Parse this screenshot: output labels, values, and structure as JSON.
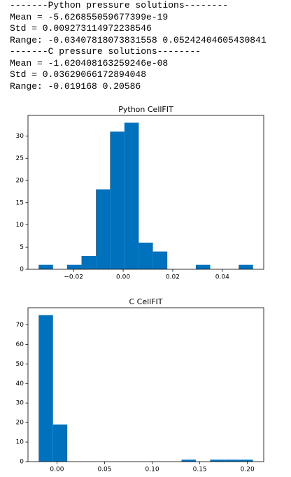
{
  "output_lines": [
    "-------Python pressure solutions--------",
    "Mean = -5.626855059677399e-19",
    "Std = 0.009273114972238546",
    "Range: -0.03407818073831558 0.05242404605430841",
    "-------C pressure solutions--------",
    "Mean = -1.020408163259246e-08",
    "Std = 0.03629066172894048",
    "Range: -0.019168 0.20586"
  ],
  "chart_data": [
    {
      "type": "histogram",
      "title": "Python CellFIT",
      "color": "#0072bd",
      "bins": [
        -0.0341,
        -0.0283,
        -0.0226,
        -0.0168,
        -0.011,
        -0.0053,
        0.0005,
        0.0063,
        0.012,
        0.0178,
        0.0236,
        0.0293,
        0.0351,
        0.0409,
        0.0466,
        0.0524
      ],
      "counts": [
        1,
        0,
        1,
        3,
        18,
        31,
        33,
        6,
        4,
        0,
        0,
        1,
        0,
        0,
        1
      ],
      "xlim": [
        -0.0384,
        0.0567
      ],
      "ylim": [
        0,
        34.65
      ],
      "xticks": [
        {
          "value": -0.02,
          "label": "−0.02"
        },
        {
          "value": 0,
          "label": "0.00"
        },
        {
          "value": 0.02,
          "label": "0.02"
        },
        {
          "value": 0.04,
          "label": "0.04"
        }
      ],
      "yticks": [
        0,
        5,
        10,
        15,
        20,
        25,
        30
      ]
    },
    {
      "type": "histogram",
      "title": "C CellFIT",
      "color": "#0072bd",
      "bins": [
        -0.019168,
        -0.004166,
        0.010836,
        0.025838,
        0.04084,
        0.055842,
        0.070844,
        0.085846,
        0.100848,
        0.11585,
        0.130852,
        0.145854,
        0.160856,
        0.175858,
        0.19086,
        0.20586
      ],
      "counts": [
        75,
        19,
        0,
        0,
        0,
        0,
        0,
        0,
        0,
        0,
        1,
        0,
        1,
        1,
        1
      ],
      "xlim": [
        -0.03042,
        0.21711
      ],
      "ylim": [
        0,
        78.75
      ],
      "xticks": [
        {
          "value": 0,
          "label": "0.00"
        },
        {
          "value": 0.05,
          "label": "0.05"
        },
        {
          "value": 0.1,
          "label": "0.10"
        },
        {
          "value": 0.15,
          "label": "0.15"
        },
        {
          "value": 0.2,
          "label": "0.20"
        }
      ],
      "yticks": [
        0,
        10,
        20,
        30,
        40,
        50,
        60,
        70
      ]
    }
  ]
}
